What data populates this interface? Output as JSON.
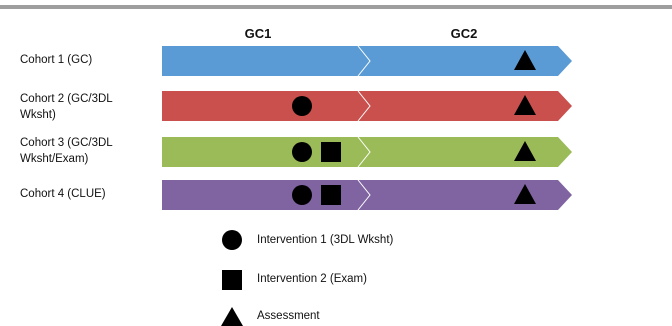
{
  "phases": {
    "first": "GC1",
    "second": "GC2"
  },
  "cohorts": [
    {
      "label": "Cohort 1 (GC)",
      "color": "#5b9bd5",
      "markers": [
        "triangle"
      ]
    },
    {
      "label": "Cohort 2 (GC/3DL\nWksht)",
      "color": "#c9504d",
      "markers": [
        "circle",
        "triangle"
      ]
    },
    {
      "label": "Cohort 3 (GC/3DL\nWksht/Exam)",
      "color": "#9bbb59",
      "markers": [
        "circle",
        "square",
        "triangle"
      ]
    },
    {
      "label": "Cohort  4 (CLUE)",
      "color": "#8064a2",
      "markers": [
        "circle",
        "square",
        "triangle"
      ]
    }
  ],
  "legend": {
    "intervention1": "Intervention 1 (3DL Wksht)",
    "intervention2": "Intervention 2 (Exam)",
    "assessment": "Assessment"
  },
  "icons": {
    "circle": "intervention-1-circle-icon",
    "square": "intervention-2-square-icon",
    "triangle": "assessment-triangle-icon"
  }
}
